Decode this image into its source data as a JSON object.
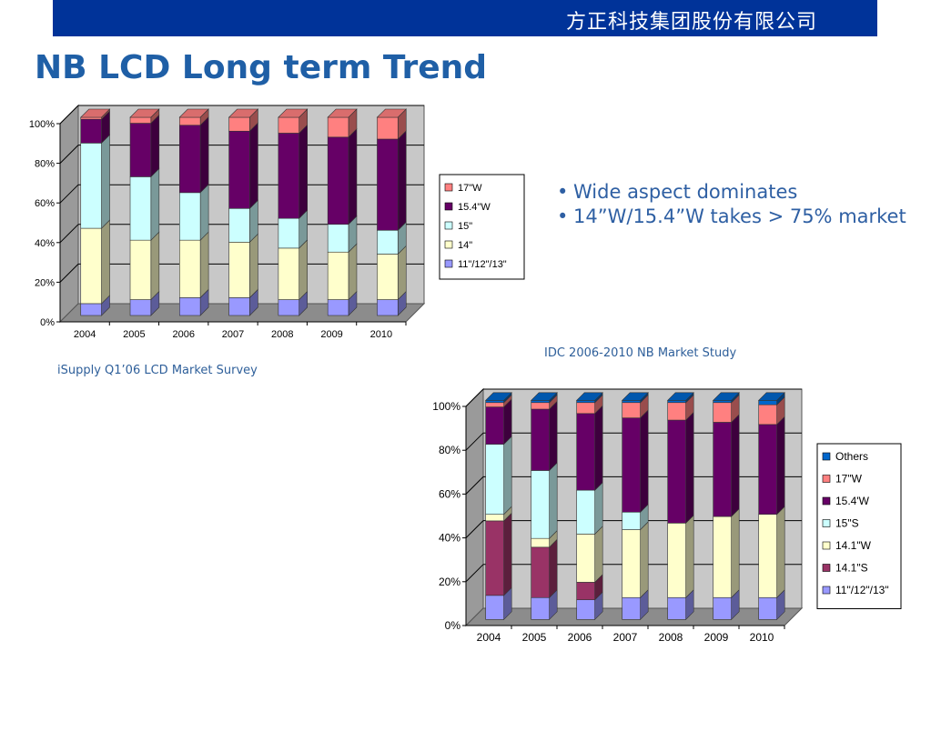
{
  "header": {
    "company": "方正科技集团股份有限公司"
  },
  "slide": {
    "title": "NB LCD Long term Trend"
  },
  "bullets": [
    "Wide aspect dominates",
    "14”W/15.4”W takes > 75% market"
  ],
  "captions": {
    "chart1": "iSupply Q1’06 LCD Market Survey",
    "chart2": "IDC 2006-2010 NB Market Study"
  },
  "colors": {
    "blue_bar": "#003399",
    "title": "#1f5fa6",
    "caption": "#2e5f9a",
    "plot_bg": "#c8c8c8",
    "plot_floor": "#8c8c8c"
  },
  "chart_data": [
    {
      "type": "bar",
      "stacked": true,
      "three_d": true,
      "categories": [
        "2004",
        "2005",
        "2006",
        "2007",
        "2008",
        "2009",
        "2010"
      ],
      "ylim": [
        0,
        100
      ],
      "yticks": [
        "0%",
        "20%",
        "40%",
        "60%",
        "80%",
        "100%"
      ],
      "grid": true,
      "legend_position": "right",
      "series": [
        {
          "name": "11\"/12\"/13\"",
          "color": "#9999ff",
          "values": [
            6,
            8,
            9,
            9,
            8,
            8,
            8
          ]
        },
        {
          "name": "14\"",
          "color": "#ffffcc",
          "values": [
            38,
            30,
            29,
            28,
            26,
            24,
            23
          ]
        },
        {
          "name": "15\"",
          "color": "#ccffff",
          "values": [
            43,
            32,
            24,
            17,
            15,
            14,
            12
          ]
        },
        {
          "name": "15.4\"W",
          "color": "#660066",
          "values": [
            12,
            27,
            34,
            39,
            43,
            44,
            46
          ]
        },
        {
          "name": "17\"W",
          "color": "#ff8080",
          "values": [
            1,
            3,
            4,
            7,
            8,
            10,
            11
          ]
        }
      ]
    },
    {
      "type": "bar",
      "stacked": true,
      "three_d": true,
      "categories": [
        "2004",
        "2005",
        "2006",
        "2007",
        "2008",
        "2009",
        "2010"
      ],
      "ylim": [
        0,
        100
      ],
      "yticks": [
        "0%",
        "20%",
        "40%",
        "60%",
        "80%",
        "100%"
      ],
      "grid": true,
      "legend_position": "right",
      "series": [
        {
          "name": "11\"/12\"/13\"",
          "color": "#9999ff",
          "values": [
            11,
            10,
            9,
            10,
            10,
            10,
            10
          ]
        },
        {
          "name": "14.1\"S",
          "color": "#993366",
          "values": [
            34,
            23,
            8,
            0,
            0,
            0,
            0
          ]
        },
        {
          "name": "14.1\"W",
          "color": "#ffffcc",
          "values": [
            3,
            4,
            22,
            31,
            34,
            37,
            38
          ]
        },
        {
          "name": "15\"S",
          "color": "#ccffff",
          "values": [
            32,
            31,
            20,
            8,
            0,
            0,
            0
          ]
        },
        {
          "name": "15.4'W",
          "color": "#660066",
          "values": [
            17,
            28,
            35,
            43,
            47,
            43,
            41
          ]
        },
        {
          "name": "17\"W",
          "color": "#ff8080",
          "values": [
            2,
            3,
            5,
            7,
            8,
            9,
            9
          ]
        },
        {
          "name": "Others",
          "color": "#0066cc",
          "values": [
            1,
            1,
            1,
            1,
            1,
            1,
            2
          ]
        }
      ]
    }
  ]
}
